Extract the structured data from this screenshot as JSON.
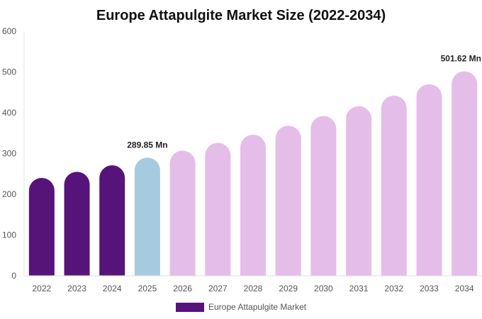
{
  "chart_data": {
    "type": "bar",
    "title": "Europe Attapulgite Market Size (2022-2034)",
    "categories": [
      "2022",
      "2023",
      "2024",
      "2025",
      "2026",
      "2027",
      "2028",
      "2029",
      "2030",
      "2031",
      "2032",
      "2033",
      "2034"
    ],
    "series": [
      {
        "name": "Europe Attapulgite Market",
        "values": [
          240,
          255,
          271,
          289.85,
          307,
          326,
          346,
          368,
          392,
          416,
          442,
          470,
          501.62
        ]
      }
    ],
    "ylim": [
      0,
      600
    ],
    "yticks": [
      "0",
      "100",
      "200",
      "300",
      "400",
      "500",
      "600"
    ],
    "data_labels": [
      {
        "index": 3,
        "text": "289.85 Mn"
      },
      {
        "index": 12,
        "text": "501.62 Mn"
      }
    ],
    "colors": {
      "historical": "#56137a",
      "current": "#a6cbe0",
      "forecast": "#e5bde9",
      "legend": "#56137a"
    },
    "bar_color_groups": [
      "historical",
      "historical",
      "historical",
      "current",
      "forecast",
      "forecast",
      "forecast",
      "forecast",
      "forecast",
      "forecast",
      "forecast",
      "forecast",
      "forecast"
    ],
    "grid": false,
    "legend_position": "bottom-center"
  }
}
